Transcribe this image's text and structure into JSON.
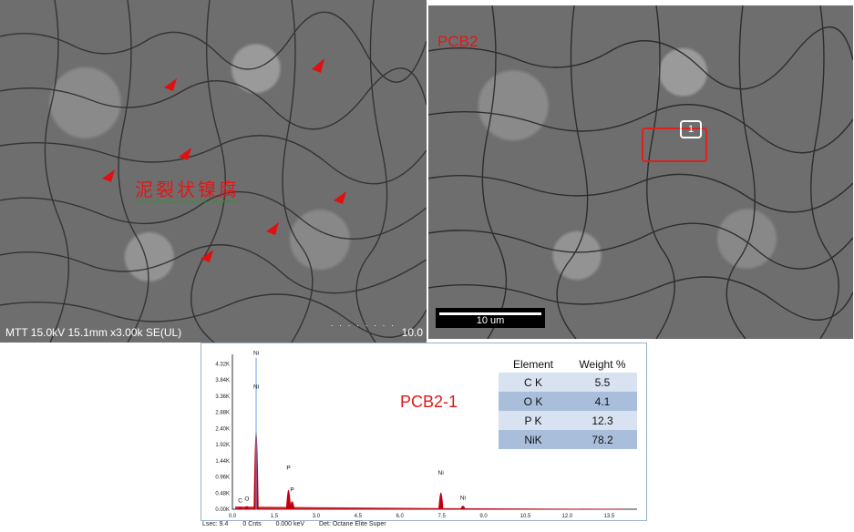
{
  "sem_left": {
    "info_text": "MTT 15.0kV 15.1mm x3.00k SE(UL)",
    "info_right": "10.0",
    "scale_ticks": "· · · · · · · ·",
    "annotation": "泥裂状镍腐"
  },
  "sem_right": {
    "label": "PCB2",
    "scale_bar_text": "10 um",
    "marker_number": "1"
  },
  "eds": {
    "title": "PCB2-1",
    "table_headers": [
      "Element",
      "Weight %"
    ],
    "table_rows": [
      {
        "element": "C K",
        "weight": "5.5"
      },
      {
        "element": "O K",
        "weight": "4.1"
      },
      {
        "element": "P K",
        "weight": "12.3"
      },
      {
        "element": "NiK",
        "weight": "78.2"
      }
    ],
    "footer": {
      "lsec": "Lsec: 9.4",
      "cnts": "0 Cnts",
      "kev": "0.000 keV",
      "det": "Det: Octane Elite Super"
    },
    "colors": {
      "spectrum": "#c00010",
      "highlight": "#6aa0e0"
    }
  },
  "chart_data": {
    "type": "area",
    "x_ticks": [
      "0.0",
      "1.5",
      "3.0",
      "4.5",
      "6.0",
      "7.5",
      "9.0",
      "10.5",
      "12.0",
      "13.5"
    ],
    "y_ticks": [
      "0.00K",
      "0.48K",
      "0.96K",
      "1.44K",
      "1.92K",
      "2.40K",
      "2.88K",
      "3.36K",
      "3.84K",
      "4.32K"
    ],
    "xlim": [
      0,
      14.5
    ],
    "ylim": [
      0,
      4.6
    ],
    "peaks": [
      {
        "label": "C",
        "x": 0.28,
        "y": 0.12
      },
      {
        "label": "O",
        "x": 0.52,
        "y": 0.18
      },
      {
        "label": "Ni",
        "x": 0.85,
        "y": 4.5
      },
      {
        "label": "Ni",
        "x": 0.85,
        "y": 3.5
      },
      {
        "label": "P",
        "x": 2.01,
        "y": 1.1
      },
      {
        "label": "P",
        "x": 2.14,
        "y": 0.45
      },
      {
        "label": "Ni",
        "x": 7.47,
        "y": 0.95
      },
      {
        "label": "Ni",
        "x": 8.26,
        "y": 0.2
      }
    ]
  }
}
